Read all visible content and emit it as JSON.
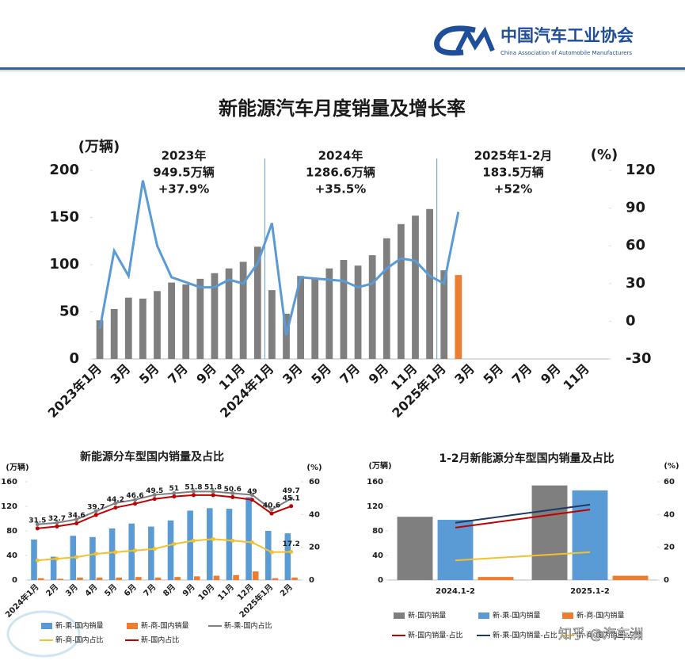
{
  "header": {
    "org": "中国汽车工业协会",
    "org_en": "China Association of Automobile Manufacturers"
  },
  "watermark": "知乎 @汽车洲",
  "chart_data": [
    {
      "type": "combo",
      "title": "新能源汽车月度销量及增长率",
      "y_label": "(万辆)",
      "y2_label": "(%)",
      "annotations": [
        [
          "2023年",
          "949.5万辆",
          "+37.9%"
        ],
        [
          "2024年",
          "1286.6万辆",
          "+35.5%"
        ],
        [
          "2025年1-2月",
          "183.5万辆",
          "+52%"
        ]
      ],
      "categories": [
        "2023年1月",
        null,
        "3月",
        null,
        "5月",
        null,
        "7月",
        null,
        "9月",
        null,
        "11月",
        null,
        "2024年1月",
        null,
        "3月",
        null,
        "5月",
        null,
        "7月",
        null,
        "9月",
        null,
        "11月",
        null,
        "2025年1月",
        null,
        "3月",
        null,
        "5月",
        null,
        "7月",
        null,
        "9月",
        null,
        "11月",
        null
      ],
      "ylim": [
        0,
        200
      ],
      "yticks": [
        0,
        50,
        100,
        150,
        200
      ],
      "y2lim": [
        -30,
        120
      ],
      "y2ticks": [
        -30,
        0,
        30,
        60,
        90,
        120
      ],
      "series": [
        {
          "type": "bar",
          "color": "#7f7f7f",
          "colors": [
            "#7f7f7f",
            "#7f7f7f",
            "#7f7f7f",
            "#7f7f7f",
            "#7f7f7f",
            "#7f7f7f",
            "#7f7f7f",
            "#7f7f7f",
            "#7f7f7f",
            "#7f7f7f",
            "#7f7f7f",
            "#7f7f7f",
            "#7f7f7f",
            "#7f7f7f",
            "#7f7f7f",
            "#7f7f7f",
            "#7f7f7f",
            "#7f7f7f",
            "#7f7f7f",
            "#7f7f7f",
            "#7f7f7f",
            "#7f7f7f",
            "#7f7f7f",
            "#7f7f7f",
            "#7f7f7f",
            "#ed7d31",
            null,
            null,
            null,
            null,
            null,
            null,
            null,
            null,
            null,
            null
          ],
          "values": [
            41,
            53,
            65,
            64,
            72,
            81,
            79,
            85,
            91,
            96,
            103,
            119,
            73,
            48,
            88,
            85,
            96,
            105,
            99,
            110,
            128,
            143,
            152,
            159,
            94,
            89,
            null,
            null,
            null,
            null,
            null,
            null,
            null,
            null,
            null,
            null
          ]
        },
        {
          "type": "line",
          "axis": "y2",
          "color": "#5b9bd5",
          "values": [
            -6,
            56,
            36,
            112,
            60,
            35,
            31,
            27,
            27,
            33,
            30,
            46,
            78,
            -11,
            35,
            34,
            33,
            32,
            27,
            30,
            42,
            50,
            48,
            36,
            30,
            87,
            null,
            null,
            null,
            null,
            null,
            null,
            null,
            null,
            null,
            null
          ]
        }
      ]
    },
    {
      "type": "combo",
      "title": "新能源分车型国内销量及占比",
      "y_label": "(万辆)",
      "y2_label": "(%)",
      "legend": "bottom",
      "markers": true,
      "categories": [
        "2024年1月",
        "2月",
        "3月",
        "4月",
        "5月",
        "6月",
        "7月",
        "8月",
        "9月",
        "10月",
        "11月",
        "12月",
        "2025年1月",
        "2月"
      ],
      "ylim": [
        0,
        160
      ],
      "yticks": [
        0,
        40,
        80,
        120,
        160
      ],
      "y2lim": [
        0,
        60
      ],
      "y2ticks": [
        0,
        20,
        40,
        60
      ],
      "series": [
        {
          "type": "bar",
          "name": "新-乘-国内销量",
          "color": "#5b9bd5",
          "values": [
            66,
            38,
            72,
            70,
            84,
            92,
            87,
            97,
            113,
            117,
            116,
            135,
            80,
            76
          ]
        },
        {
          "type": "bar",
          "name": "新-商-国内销量",
          "color": "#ed7d31",
          "values": [
            3,
            2,
            4,
            4,
            4,
            5,
            4,
            5,
            6,
            7,
            8,
            14,
            3,
            4
          ]
        },
        {
          "type": "line",
          "axis": "y2",
          "name": "新-乘-国内占比",
          "color": "#7f7f7f",
          "data_labels": "last",
          "values": [
            34,
            35,
            37,
            42,
            47,
            49,
            52,
            53,
            54,
            54,
            53,
            52,
            43,
            49.7
          ]
        },
        {
          "type": "line",
          "axis": "y2",
          "name": "新-商-国内占比",
          "color": "#f2c12e",
          "data_labels": "last",
          "values": [
            12,
            13,
            14,
            16,
            17,
            18,
            19,
            22,
            24,
            25,
            24,
            23,
            17,
            17.2
          ]
        },
        {
          "type": "line",
          "axis": "y2",
          "name": "新-国内占比",
          "color": "#c00000",
          "data_labels": "all",
          "values": [
            31.5,
            32.7,
            34.6,
            39.7,
            44.2,
            46.6,
            49.5,
            51,
            51.8,
            51.8,
            50.6,
            49,
            40.6,
            45.1
          ]
        }
      ]
    },
    {
      "type": "combo",
      "title": "1-2月新能源分车型国内销量及占比",
      "y_label": "(万辆)",
      "y2_label": "(%)",
      "legend": "bottom",
      "categories": [
        "2024.1-2",
        "2025.1-2"
      ],
      "ylim": [
        0,
        160
      ],
      "yticks": [
        0,
        40,
        80,
        120,
        160
      ],
      "y2lim": [
        0,
        60
      ],
      "y2ticks": [
        0,
        20,
        40,
        60
      ],
      "series": [
        {
          "type": "bar",
          "name": "新-国内销量",
          "color": "#7f7f7f",
          "values": [
            103,
            154
          ]
        },
        {
          "type": "bar",
          "name": "新-乘-国内销量",
          "color": "#5b9bd5",
          "values": [
            98,
            146
          ]
        },
        {
          "type": "bar",
          "name": "新-商-国内销量",
          "color": "#ed7d31",
          "values": [
            5,
            7
          ]
        },
        {
          "type": "line",
          "axis": "y2",
          "name": "新-国内销量-占比",
          "color": "#c00000",
          "values": [
            32,
            43
          ]
        },
        {
          "type": "line",
          "axis": "y2",
          "name": "新-乘-国内销量-占比",
          "color": "#1f3864",
          "values": [
            35,
            46
          ]
        },
        {
          "type": "line",
          "axis": "y2",
          "name": "新-商-国内销量-占比",
          "color": "#f2c12e",
          "values": [
            12,
            17
          ]
        }
      ]
    }
  ]
}
